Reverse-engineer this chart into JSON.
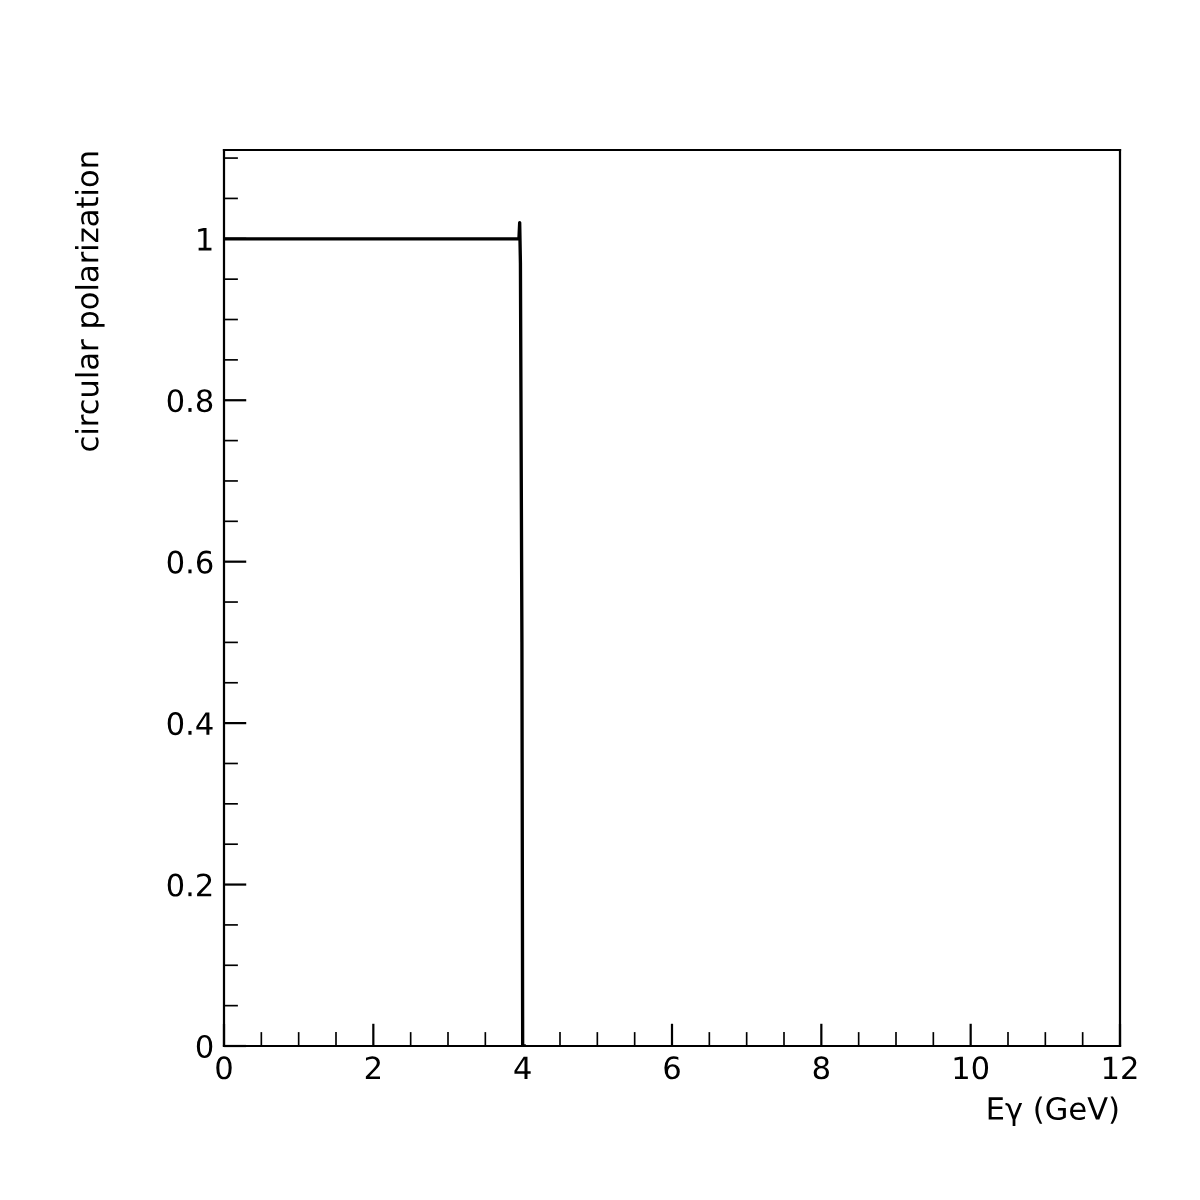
{
  "chart_data": {
    "type": "line",
    "xlabel": "Eγ (GeV)",
    "ylabel": "circular polarization",
    "x": [
      0,
      1,
      2,
      3,
      3.9,
      3.95,
      3.96,
      3.97,
      3.99,
      4.0,
      4.02
    ],
    "series": [
      {
        "color": "#000000",
        "values": [
          1,
          1,
          1,
          1,
          1,
          1.0,
          1.02,
          0.97,
          0.5,
          0.0,
          0.0
        ]
      }
    ],
    "xlim": [
      0,
      12
    ],
    "ylim": [
      0,
      1.11
    ],
    "xticks": [
      0,
      2,
      4,
      6,
      8,
      10,
      12
    ],
    "yticks": [
      0,
      0.2,
      0.4,
      0.6,
      0.8,
      1
    ],
    "grid": false,
    "legend": false,
    "marker": "none",
    "line_style": "solid"
  }
}
